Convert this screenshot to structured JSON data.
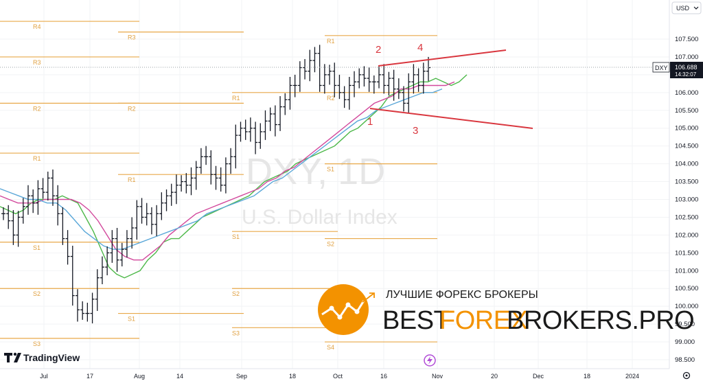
{
  "currency_selector": "USD",
  "symbol_badge": "DXY",
  "last_price": "106.688",
  "countdown": "14:32:07",
  "watermark": {
    "title": "DXY, 1D",
    "subtitle": "U.S. Dollar Index"
  },
  "brand": {
    "name": "TradingView"
  },
  "ad": {
    "tagline": "ЛУЧШИЕ ФОРЕКС БРОКЕРЫ",
    "name_left": "BEST",
    "name_mid": "FOREX",
    "name_right": "BROKERS.PRO"
  },
  "chart_data": {
    "type": "ohlc",
    "y_axis_ticks": [
      "107.500",
      "107.000",
      "106.500",
      "106.000",
      "105.500",
      "105.000",
      "104.500",
      "104.000",
      "103.500",
      "103.000",
      "102.500",
      "102.000",
      "101.500",
      "101.000",
      "100.500",
      "100.000",
      "99.500",
      "99.000",
      "98.500"
    ],
    "ylim": [
      98.3,
      108.4
    ],
    "x_axis_ticks": [
      "Jul",
      "17",
      "Aug",
      "14",
      "Sep",
      "18",
      "Oct",
      "16",
      "Nov",
      "20",
      "Dec",
      "18",
      "2024"
    ],
    "pivot_levels": [
      {
        "label": "R4",
        "value": 108.0
      },
      {
        "label": "R3",
        "value": 107.0
      },
      {
        "label": "R2",
        "value": 105.7
      },
      {
        "label": "R1",
        "value": 104.3
      },
      {
        "label": "S1",
        "value": 101.8
      },
      {
        "label": "S2",
        "value": 100.5
      },
      {
        "label": "S3",
        "value": 99.1
      },
      {
        "label": "R3",
        "value": 107.7
      },
      {
        "label": "R2",
        "value": 105.7
      },
      {
        "label": "R1",
        "value": 103.7
      },
      {
        "label": "S1",
        "value": 99.8
      },
      {
        "label": "R1",
        "value": 106.0
      },
      {
        "label": "S1",
        "value": 102.1
      },
      {
        "label": "S2",
        "value": 100.5
      },
      {
        "label": "S3",
        "value": 99.4
      },
      {
        "label": "R1",
        "value": 107.6
      },
      {
        "label": "R2",
        "value": 106.0
      },
      {
        "label": "S1",
        "value": 104.0
      },
      {
        "label": "S2",
        "value": 101.9
      },
      {
        "label": "S4",
        "value": 99.0
      }
    ],
    "ohlc_closes": [
      102.6,
      102.4,
      102.0,
      102.5,
      102.8,
      103.1,
      102.9,
      103.3,
      103.2,
      103.6,
      103.1,
      102.6,
      101.9,
      101.4,
      100.3,
      99.9,
      99.8,
      99.8,
      100.2,
      100.8,
      101.1,
      101.5,
      101.9,
      101.3,
      101.6,
      101.9,
      102.2,
      102.8,
      102.5,
      102.6,
      102.3,
      102.6,
      102.9,
      103.1,
      103.2,
      103.4,
      103.5,
      103.4,
      103.6,
      103.9,
      104.2,
      104.2,
      103.7,
      103.6,
      103.4,
      104.0,
      104.2,
      104.8,
      105.0,
      104.9,
      105.0,
      104.6,
      104.9,
      105.2,
      105.4,
      105.1,
      105.6,
      105.8,
      106.2,
      106.2,
      106.7,
      106.6,
      106.9,
      107.1,
      106.2,
      106.5,
      106.6,
      106.2,
      106.0,
      105.8,
      106.2,
      106.3,
      106.5,
      106.4,
      106.3,
      106.3,
      106.5,
      106.2,
      106.4,
      106.1,
      106.0,
      105.7,
      106.3,
      106.5,
      106.2,
      106.6,
      106.7
    ],
    "moving_averages": [
      {
        "color": "#4cb848",
        "values": [
          102.8,
          102.7,
          102.6,
          102.7,
          102.9,
          103.0,
          103.0,
          103.0,
          103.1,
          103.0,
          102.9,
          102.5,
          102.1,
          101.6,
          101.1,
          100.9,
          100.8,
          100.9,
          101.0,
          101.3,
          101.5,
          101.8,
          101.9,
          101.9,
          102.1,
          102.3,
          102.5,
          102.6,
          102.7,
          102.8,
          102.9,
          103.0,
          103.1,
          103.3,
          103.5,
          103.6,
          103.7,
          103.8,
          104.0,
          104.1,
          104.2,
          104.3,
          104.4,
          104.5,
          104.7,
          104.9,
          105.0,
          105.2,
          105.4,
          105.6,
          105.9,
          106.0,
          106.1,
          106.2,
          106.3,
          106.3,
          106.4,
          106.3,
          106.2,
          106.3,
          106.5
        ]
      },
      {
        "color": "#d2489c",
        "values": [
          103.1,
          103.0,
          102.9,
          102.9,
          102.9,
          103.0,
          103.0,
          103.0,
          103.0,
          102.9,
          102.7,
          102.4,
          102.0,
          101.6,
          101.4,
          101.3,
          101.3,
          101.5,
          101.7,
          102.0,
          102.2,
          102.4,
          102.6,
          102.7,
          102.8,
          102.9,
          103.0,
          103.1,
          103.2,
          103.3,
          103.5,
          103.6,
          103.8,
          103.9,
          104.1,
          104.3,
          104.5,
          104.7,
          104.9,
          105.1,
          105.3,
          105.5,
          105.7,
          105.8,
          105.9,
          106.1,
          106.1,
          106.2,
          106.2,
          106.2,
          106.2,
          106.3
        ]
      },
      {
        "color": "#5aa7d8",
        "values": [
          103.3,
          103.2,
          103.1,
          103.0,
          103.0,
          102.9,
          102.9,
          102.7,
          102.4,
          102.1,
          101.9,
          101.7,
          101.6,
          101.6,
          101.7,
          101.8,
          101.9,
          102.0,
          102.1,
          102.2,
          102.3,
          102.4,
          102.6,
          102.7,
          102.8,
          102.9,
          103.0,
          103.1,
          103.3,
          103.5,
          103.6,
          103.8,
          104.0,
          104.2,
          104.4,
          104.6,
          104.8,
          105.0,
          105.2,
          105.3,
          105.5,
          105.6,
          105.7,
          105.8,
          105.9,
          106.0,
          106.0,
          106.1
        ]
      }
    ],
    "annotations": [
      {
        "text": "1",
        "price": 105.4
      },
      {
        "text": "2",
        "price": 107.3
      },
      {
        "text": "3",
        "price": 105.0
      },
      {
        "text": "4",
        "price": 107.3
      }
    ]
  }
}
